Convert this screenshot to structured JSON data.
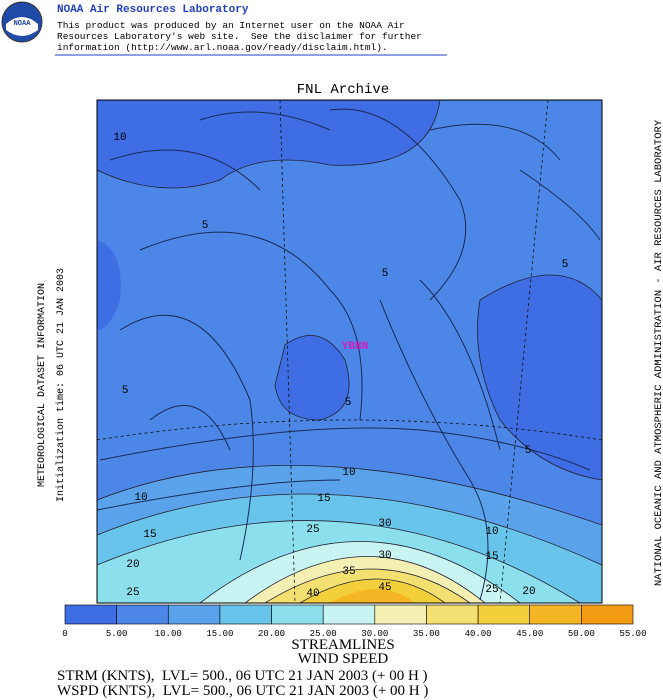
{
  "header": {
    "logo": "NOAA",
    "title": "NOAA Air Resources Laboratory",
    "disclaimer": [
      "This product was produced by an Internet user on the NOAA Air",
      "Resources Laboratory's web site.  See the disclaimer for further",
      "information (http://www.arl.noaa.gov/ready/disclaim.html)."
    ]
  },
  "map": {
    "title": "FNL Archive",
    "left_labels": [
      "METEOROLOGICAL DATASET INFORMATION",
      "Initialization time: 06 UTC 21 JAN 2003"
    ],
    "right_label": "NATIONAL OCEANIC AND ATMOSPHERIC ADMINISTRATION - AIR RESOURCES LABORATORY",
    "station": "YBBN",
    "contour_labels": [
      "10",
      "5",
      "5",
      "5",
      "5",
      "5",
      "5",
      "10",
      "10",
      "15",
      "30",
      "10",
      "25",
      "15",
      "30",
      "15",
      "20",
      "35",
      "40",
      "45",
      "25",
      "20",
      "25"
    ]
  },
  "colorbar": {
    "colors": [
      "#3e6de4",
      "#4c86e6",
      "#5aa2ea",
      "#68c4ea",
      "#8ce0ee",
      "#c8f4f2",
      "#f4f0b4",
      "#f4e070",
      "#f4cf3c",
      "#f4b622",
      "#f49c14"
    ],
    "labels": [
      "0",
      "5.00",
      "10.00",
      "15.00",
      "20.00",
      "25.00",
      "30.00",
      "35.00",
      "40.00",
      "45.00",
      "50.00",
      "55.00"
    ]
  },
  "footer": {
    "lines": [
      "STREAMLINES",
      "WIND SPEED",
      "STRM (KNTS),  LVL= 500., 06 UTC 21 JAN 2003 (+ 00 H )",
      "WSPD (KNTS),  LVL= 500., 06 UTC 21 JAN 2003 (+ 00 H )"
    ]
  }
}
